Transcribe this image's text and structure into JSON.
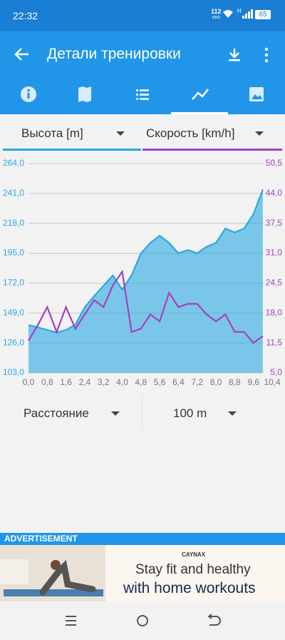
{
  "status_bar": {
    "time": "22:32",
    "net_speed": "112",
    "net_unit": "KB/S",
    "network": "H",
    "battery": "65"
  },
  "app_bar": {
    "title": "Детали тренировки"
  },
  "chart_data": {
    "type": "line",
    "x": [
      0,
      0.4,
      0.8,
      1.2,
      1.6,
      2.0,
      2.4,
      2.8,
      3.2,
      3.6,
      4.0,
      4.4,
      4.8,
      5.2,
      5.6,
      6.0,
      6.4,
      6.8,
      7.2,
      7.6,
      8.0,
      8.4,
      8.8,
      9.2,
      9.6,
      10.0
    ],
    "series": [
      {
        "name": "Высота [m]",
        "color": "#29a9e1",
        "fill": true,
        "values": [
          139.8,
          138,
          136,
          134,
          136,
          140,
          153.5,
          162,
          170,
          178,
          167,
          178,
          195,
          203,
          208.5,
          203,
          195,
          197.5,
          195,
          200,
          203,
          214,
          211,
          214,
          225,
          244
        ]
      },
      {
        "name": "Скорость [km/h]",
        "color": "#a43fc0",
        "axis": "y2",
        "values": [
          12,
          15.4,
          19.3,
          13.9,
          19.3,
          14.6,
          17.7,
          20.8,
          19.3,
          24,
          27,
          13.9,
          14.6,
          17.7,
          16.2,
          22.4,
          19.3,
          20,
          20,
          17.7,
          16.2,
          17.7,
          13.9,
          13.9,
          11.5,
          13
        ]
      }
    ],
    "xlim": [
      0,
      10.4
    ],
    "xticks": [
      {
        "value": 0,
        "label": "0,0"
      },
      {
        "value": 0.8,
        "label": "0,8"
      },
      {
        "value": 1.6,
        "label": "1,6"
      },
      {
        "value": 2.4,
        "label": "2,4"
      },
      {
        "value": 3.2,
        "label": "3,2"
      },
      {
        "value": 4.0,
        "label": "4,0"
      },
      {
        "value": 4.8,
        "label": "4,8"
      },
      {
        "value": 5.6,
        "label": "5,6"
      },
      {
        "value": 6.4,
        "label": "6,4"
      },
      {
        "value": 7.2,
        "label": "7,2"
      },
      {
        "value": 8.0,
        "label": "8,0"
      },
      {
        "value": 8.8,
        "label": "8,8"
      },
      {
        "value": 9.6,
        "label": "9,6"
      },
      {
        "value": 10.4,
        "label": "10,4"
      }
    ],
    "ylim": [
      103,
      264
    ],
    "yticks": [
      {
        "value": 103,
        "label": "103,0"
      },
      {
        "value": 126,
        "label": "126,0"
      },
      {
        "value": 149,
        "label": "149,0"
      },
      {
        "value": 172,
        "label": "172,0"
      },
      {
        "value": 195,
        "label": "195,0"
      },
      {
        "value": 218,
        "label": "218,0"
      },
      {
        "value": 241,
        "label": "241,0"
      },
      {
        "value": 264,
        "label": "264,0"
      }
    ],
    "y2lim": [
      5,
      50.5
    ],
    "y2ticks": [
      {
        "value": 5,
        "label": "5,0"
      },
      {
        "value": 11.5,
        "label": "11,5"
      },
      {
        "value": 18,
        "label": "18,0"
      },
      {
        "value": 24.5,
        "label": "24,5"
      },
      {
        "value": 31,
        "label": "31,0"
      },
      {
        "value": 37.5,
        "label": "37,5"
      },
      {
        "value": 44,
        "label": "44,0"
      },
      {
        "value": 50.5,
        "label": "50,5"
      }
    ],
    "grid": true
  },
  "selectors": {
    "x_axis": "Расстояние",
    "interval": "100 m"
  },
  "ad": {
    "label": "ADVERTISEMENT",
    "brand": "CAYNAX",
    "line1": "Stay fit and healthy",
    "line2": "with home workouts"
  }
}
